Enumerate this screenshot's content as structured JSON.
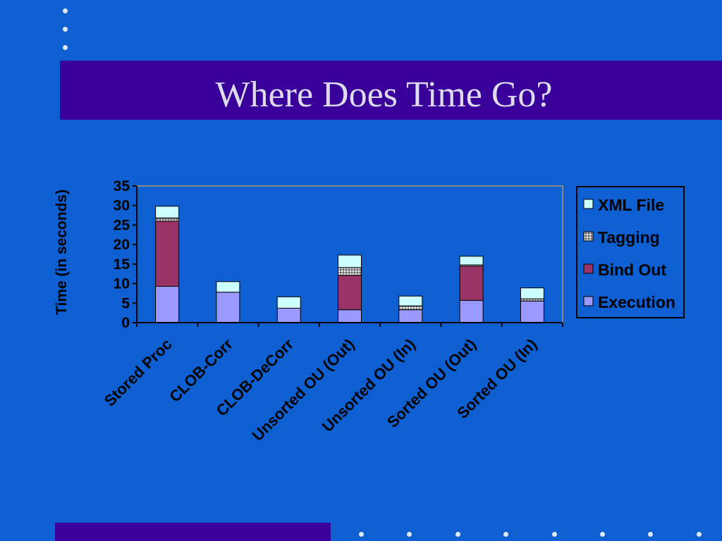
{
  "slide": {
    "title": "Where Does Time Go?",
    "background_color": "#0d5fd2",
    "title_bar_color": "#3a009a"
  },
  "chart_data": {
    "type": "bar",
    "stacked": true,
    "title": "",
    "xlabel": "",
    "ylabel": "Time (in seconds)",
    "ylim": [
      0,
      35
    ],
    "yticks": [
      0,
      5,
      10,
      15,
      20,
      25,
      30,
      35
    ],
    "categories": [
      "Stored Proc",
      "CLOB-Corr",
      "CLOB-DeCorr",
      "Unsorted OU (Out)",
      "Unsorted OU (In)",
      "Sorted OU (Out)",
      "Sorted OU (In)"
    ],
    "series": [
      {
        "name": "Execution",
        "color": "#9999ff",
        "values": [
          9.3,
          7.8,
          3.7,
          3.3,
          3.3,
          5.7,
          5.5
        ]
      },
      {
        "name": "Bind Out",
        "color": "#993366",
        "values": [
          16.7,
          0,
          0,
          8.8,
          0,
          8.8,
          0
        ]
      },
      {
        "name": "Tagging",
        "color": "#b8b8b8",
        "values": [
          0.8,
          0,
          0,
          2.0,
          1.0,
          0.3,
          0.6
        ]
      },
      {
        "name": "XML File",
        "color": "#ccffff",
        "values": [
          3.0,
          2.7,
          2.9,
          3.2,
          2.5,
          2.2,
          2.8
        ]
      }
    ],
    "legend_position": "right",
    "grid": false
  }
}
